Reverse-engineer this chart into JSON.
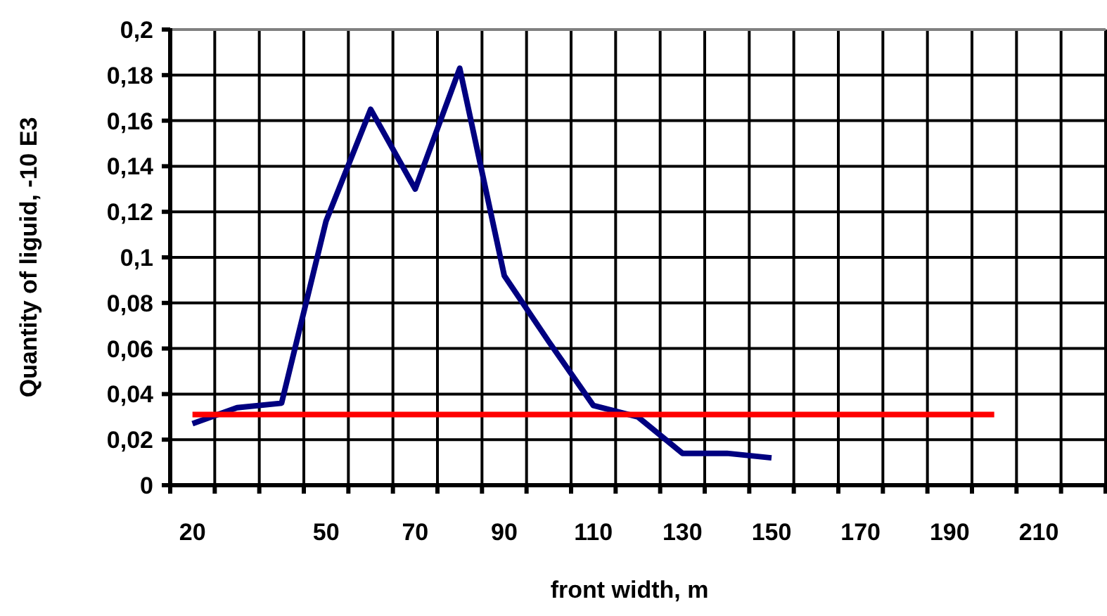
{
  "chart_data": {
    "type": "line",
    "xlabel": "front width, m",
    "ylabel": "Quantity of liguid, -10 E3",
    "categories": [
      "20",
      null,
      null,
      "50",
      null,
      "70",
      null,
      "90",
      null,
      "110",
      null,
      "130",
      null,
      "150",
      null,
      "170",
      null,
      "190",
      null,
      "210",
      null
    ],
    "series": [
      {
        "color": "#000080",
        "values": [
          0.027,
          0.034,
          0.036,
          0.116,
          0.165,
          0.13,
          0.183,
          0.092,
          0.063,
          0.035,
          0.03,
          0.014,
          0.014,
          0.012,
          null,
          null,
          null,
          null,
          null,
          null,
          null
        ]
      },
      {
        "color": "#ff0000",
        "values": [
          0.031,
          0.031,
          0.031,
          0.031,
          0.031,
          0.031,
          0.031,
          0.031,
          0.031,
          0.031,
          0.031,
          0.031,
          0.031,
          0.031,
          0.031,
          0.031,
          0.031,
          0.031,
          0.031,
          null,
          null
        ]
      }
    ],
    "ylim": [
      0,
      0.2
    ],
    "yticks": [
      {
        "value": 0,
        "label": "0"
      },
      {
        "value": 0.02,
        "label": "0,02"
      },
      {
        "value": 0.04,
        "label": "0,04"
      },
      {
        "value": 0.06,
        "label": "0,06"
      },
      {
        "value": 0.08,
        "label": "0,08"
      },
      {
        "value": 0.1,
        "label": "0,1"
      },
      {
        "value": 0.12,
        "label": "0,12"
      },
      {
        "value": 0.14,
        "label": "0,14"
      },
      {
        "value": 0.16,
        "label": "0,16"
      },
      {
        "value": 0.18,
        "label": "0,18"
      },
      {
        "value": 0.2,
        "label": "0,2"
      }
    ],
    "grid": true,
    "marker": "none",
    "line_style": "solid"
  }
}
